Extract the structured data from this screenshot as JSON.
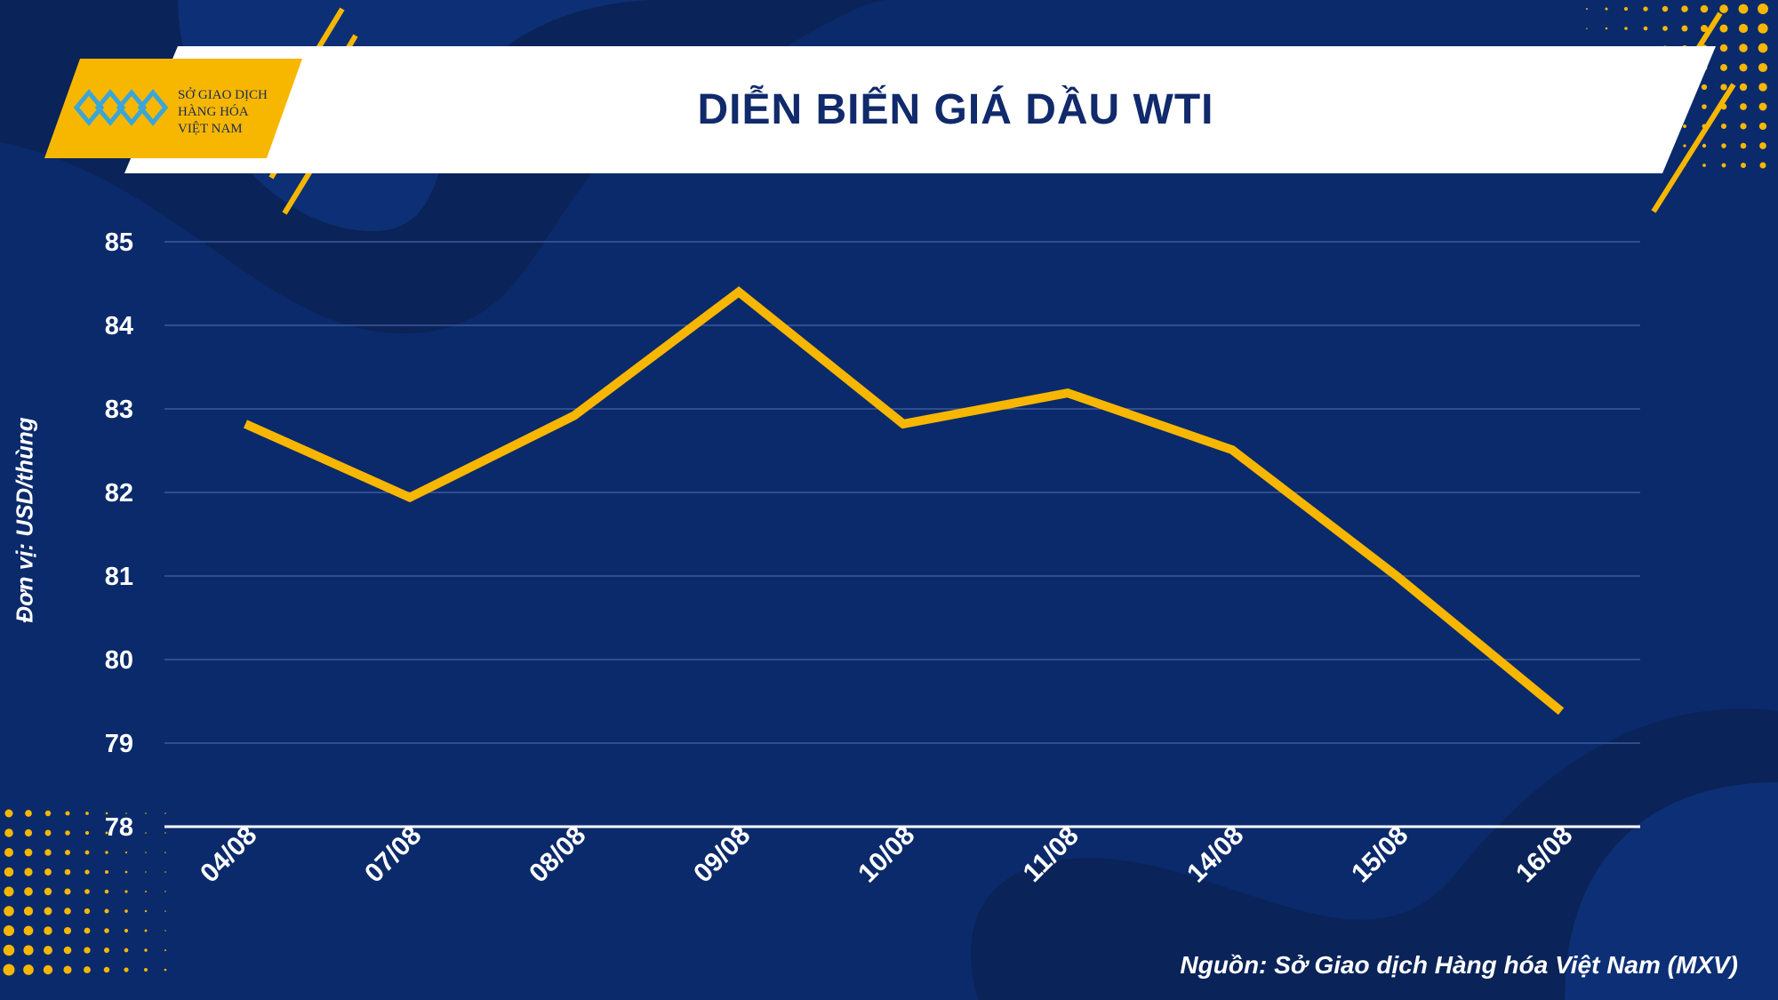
{
  "header": {
    "title": "DIỄN BIẾN GIÁ DẦU WTI",
    "logo_lines": [
      "SỞ GIAO DỊCH",
      "HÀNG HÓA",
      "VIỆT NAM"
    ]
  },
  "footer": {
    "source": "Nguồn: Sở Giao dịch Hàng hóa Việt Nam (MXV)"
  },
  "colors": {
    "background": "#0b2a6b",
    "line": "#f7b700",
    "accent": "#f7b700",
    "title_text": "#102a6b",
    "gridline": "#3d5a9a"
  },
  "chart_data": {
    "type": "line",
    "title": "DIỄN BIẾN GIÁ DẦU WTI",
    "xlabel": "",
    "ylabel": "Đơn vị: USD/thùng",
    "categories": [
      "04/08",
      "07/08",
      "08/08",
      "09/08",
      "10/08",
      "11/08",
      "14/08",
      "15/08",
      "16/08"
    ],
    "series": [
      {
        "values": [
          82.82,
          81.94,
          82.92,
          84.4,
          82.82,
          83.19,
          82.51,
          81.0,
          79.38
        ]
      }
    ],
    "ylim": [
      78,
      85
    ],
    "yticks": [
      78,
      79,
      80,
      81,
      82,
      83,
      84,
      85
    ],
    "grid": true,
    "legend": "none"
  }
}
